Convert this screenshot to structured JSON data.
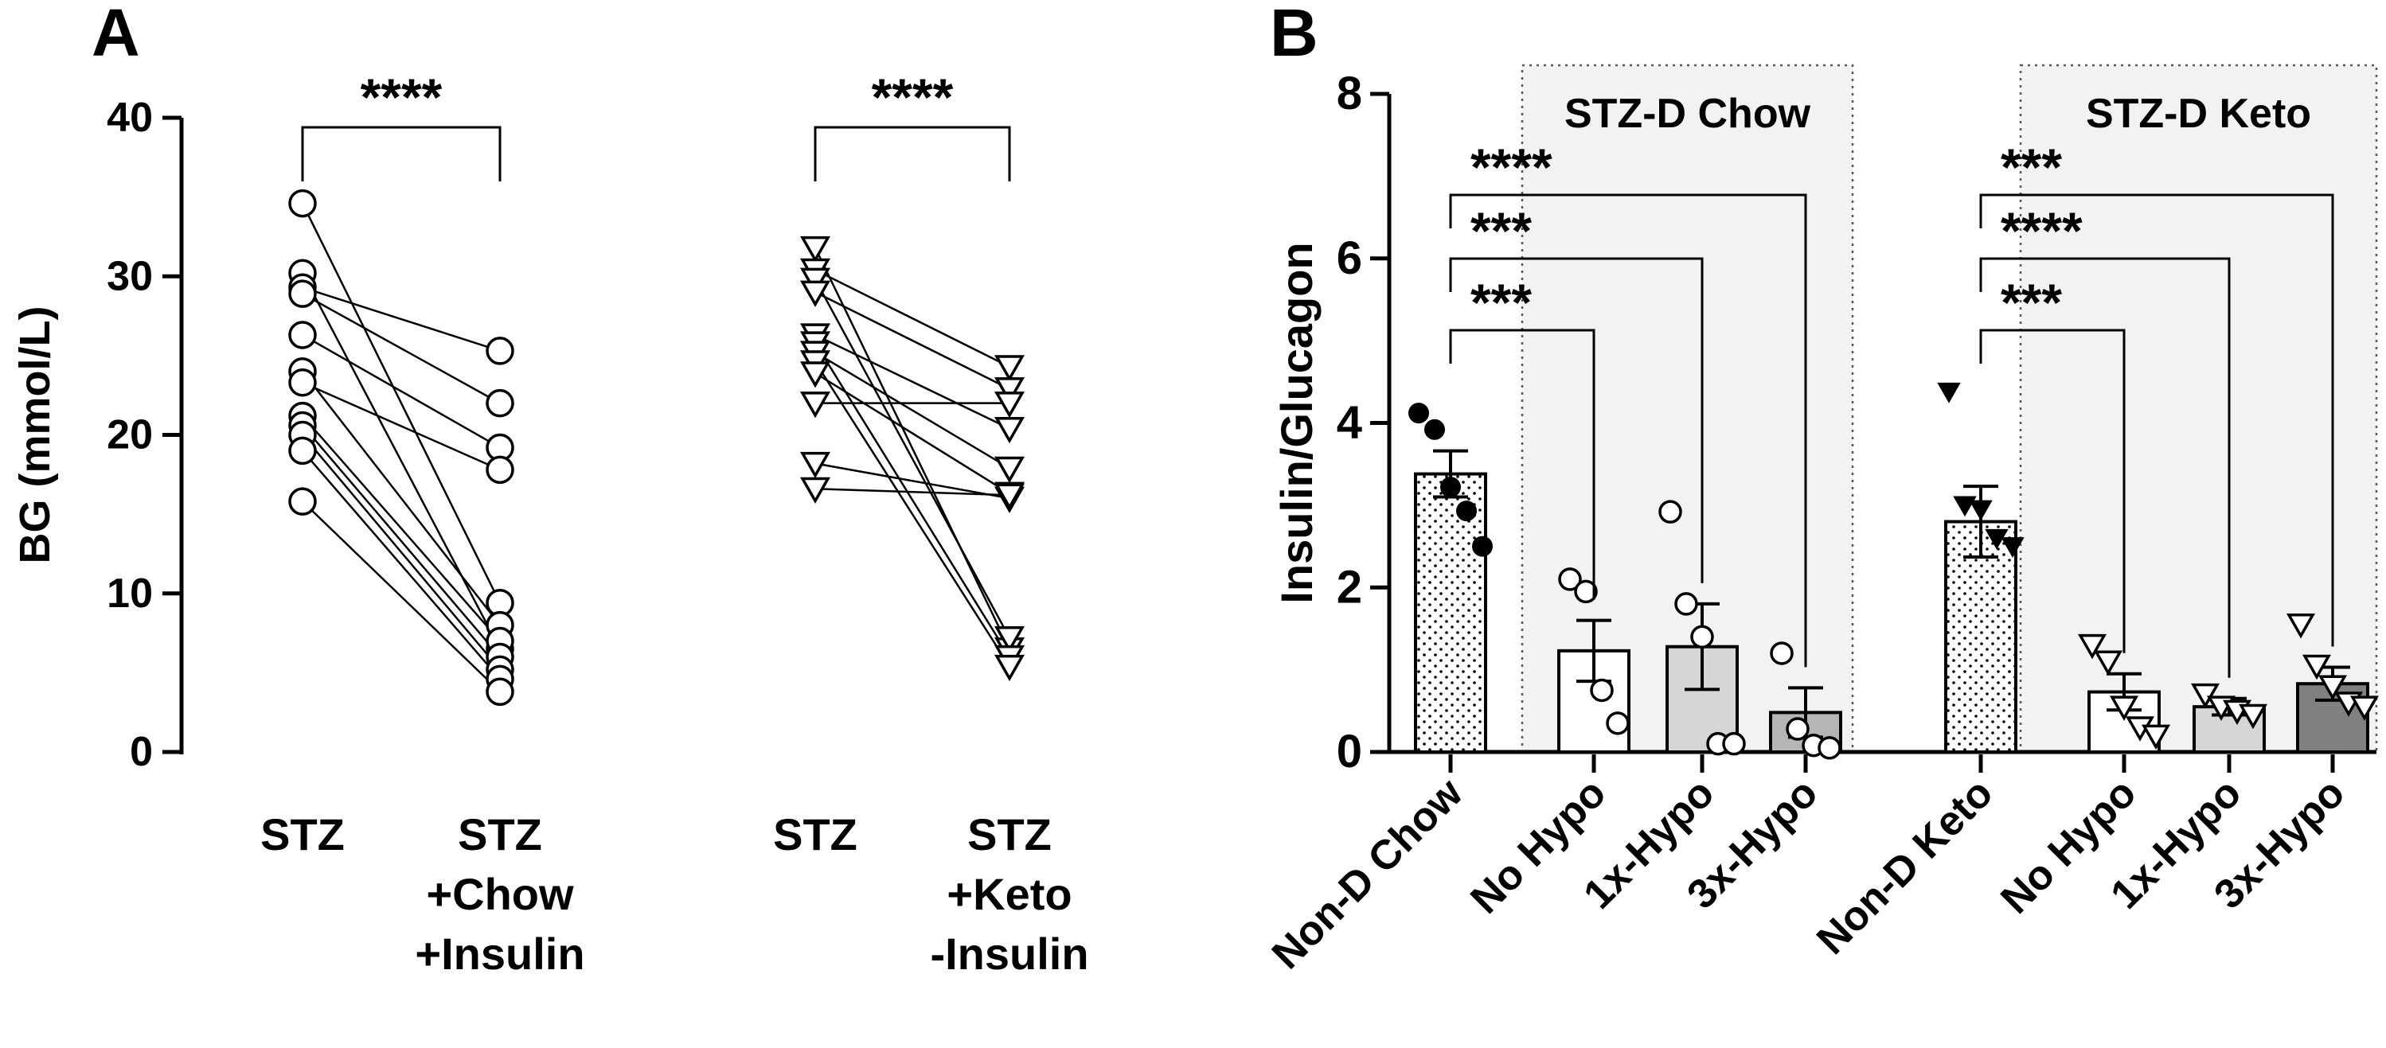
{
  "chart_data": [
    {
      "panel": "A",
      "type": "paired-dot",
      "ylabel": "BG (mmol/L)",
      "ylim": [
        0,
        40
      ],
      "yticks": [
        "0",
        "10",
        "20",
        "30",
        "40"
      ],
      "groups": [
        {
          "name": "Chow",
          "labels": [
            [
              "STZ"
            ],
            [
              "STZ",
              "+Chow",
              "+Insulin"
            ]
          ],
          "marker": "circle",
          "significance": "****",
          "before": [
            34.6,
            30.2,
            29.3,
            28.9,
            26.3,
            24.0,
            23.3,
            21.2,
            20.6,
            20.0,
            19.0,
            15.8
          ],
          "after": [
            9.4,
            6.5,
            25.3,
            22.0,
            19.2,
            8.0,
            17.8,
            7.0,
            6.0,
            5.2,
            4.6,
            3.8
          ]
        },
        {
          "name": "Keto",
          "labels": [
            [
              "STZ"
            ],
            [
              "STZ",
              "+Keto",
              "-Insulin"
            ]
          ],
          "marker": "triangle-down",
          "significance": "****",
          "before": [
            31.8,
            30.4,
            29.8,
            29.0,
            26.3,
            25.8,
            25.2,
            24.6,
            23.9,
            22.0,
            18.2,
            16.6
          ],
          "after": [
            6.5,
            24.3,
            7.2,
            22.9,
            20.4,
            6.0,
            17.9,
            5.4,
            16.3,
            22.0,
            16.0,
            16.2
          ]
        }
      ]
    },
    {
      "panel": "B",
      "type": "bar",
      "ylabel": "Insulin/Glucagon",
      "ylim": [
        0,
        8
      ],
      "yticks": [
        "0",
        "2",
        "4",
        "6",
        "8"
      ],
      "categories": [
        "Non-D Chow",
        "No Hypo",
        "1x-Hypo",
        "3x-Hypo",
        "Non-D Keto",
        "No Hypo",
        "1x-Hypo",
        "3x-Hypo"
      ],
      "values": [
        3.38,
        1.23,
        1.28,
        0.48,
        2.8,
        0.73,
        0.55,
        0.83
      ],
      "sem": [
        0.28,
        0.37,
        0.52,
        0.3,
        0.43,
        0.22,
        0.1,
        0.2
      ],
      "fills": [
        "dotted",
        "#ffffff",
        "#d6d6d6",
        "#b5b5b5",
        "dotted",
        "#ffffff",
        "#d6d6d6",
        "#808080"
      ],
      "points": [
        [
          4.12,
          3.92,
          3.22,
          2.93,
          2.5
        ],
        [
          2.1,
          1.95,
          0.75,
          0.35
        ],
        [
          2.92,
          1.8,
          1.4,
          0.1,
          0.1
        ],
        [
          1.2,
          0.28,
          0.08,
          0.05
        ],
        [
          4.38,
          3.0,
          2.95,
          2.6,
          2.5
        ],
        [
          1.3,
          1.1,
          0.55,
          0.3,
          0.2
        ],
        [
          0.7,
          0.55,
          0.5,
          0.45
        ],
        [
          1.55,
          1.05,
          0.8,
          0.6,
          0.55
        ]
      ],
      "shaded_regions": [
        "STZ-D Chow",
        "STZ-D Keto"
      ],
      "comparisons": [
        {
          "from": 0,
          "to": 1,
          "label": "***"
        },
        {
          "from": 0,
          "to": 2,
          "label": "***"
        },
        {
          "from": 0,
          "to": 3,
          "label": "****"
        },
        {
          "from": 4,
          "to": 5,
          "label": "***"
        },
        {
          "from": 4,
          "to": 6,
          "label": "****"
        },
        {
          "from": 4,
          "to": 7,
          "label": "***"
        }
      ]
    }
  ],
  "panel_labels": [
    "A",
    "B"
  ]
}
